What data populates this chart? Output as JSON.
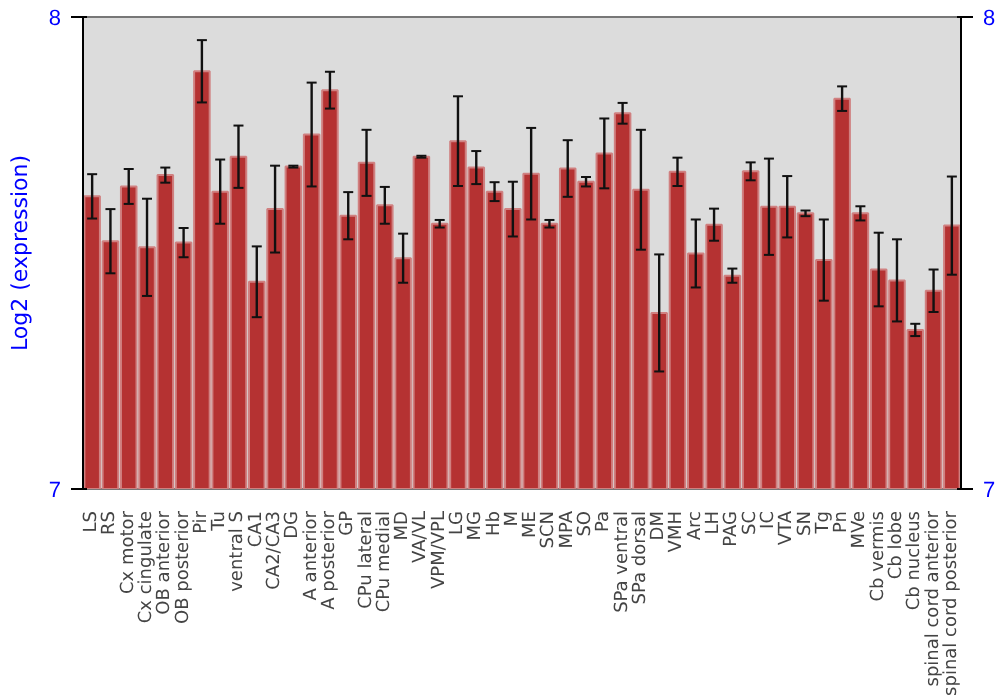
{
  "chart_data": {
    "type": "bar",
    "ylabel": "Log2 (expression)",
    "categories": [
      "LS",
      "RS",
      "Cx motor",
      "Cx cingulate",
      "OB anterior",
      "OB posterior",
      "Pir",
      "Tu",
      "ventral S",
      "CA1",
      "CA2/CA3",
      "DG",
      "A anterior",
      "A posterior",
      "GP",
      "CPu lateral",
      "CPu medial",
      "MD",
      "VA/VL",
      "VPM/VPL",
      "LG",
      "MG",
      "Hb",
      "M",
      "ME",
      "SCN",
      "MPA",
      "SO",
      "Pa",
      "SPa ventral",
      "SPa dorsal",
      "DM",
      "VMH",
      "Arc",
      "LH",
      "PAG",
      "SC",
      "IC",
      "VTA",
      "SN",
      "Tg",
      "Pn",
      "MVe",
      "Cb vermis",
      "Cb lobe",
      "Cb nucleus",
      "spinal cord anterior",
      "spinal cord posterior"
    ],
    "values": [
      7.62,
      7.525,
      7.641,
      7.512,
      7.665,
      7.522,
      7.885,
      7.63,
      7.704,
      7.439,
      7.593,
      7.683,
      7.751,
      7.845,
      7.579,
      7.691,
      7.601,
      7.489,
      7.704,
      7.562,
      7.737,
      7.681,
      7.63,
      7.593,
      7.668,
      7.562,
      7.679,
      7.651,
      7.711,
      7.796,
      7.634,
      7.373,
      7.672,
      7.499,
      7.56,
      7.452,
      7.673,
      7.598,
      7.598,
      7.584,
      7.485,
      7.827,
      7.584,
      7.465,
      7.442,
      7.337,
      7.42,
      7.558
    ],
    "errors": [
      0.047,
      0.068,
      0.037,
      0.103,
      0.016,
      0.031,
      0.066,
      0.068,
      0.066,
      0.075,
      0.092,
      0.002,
      0.11,
      0.039,
      0.05,
      0.07,
      0.039,
      0.052,
      0.002,
      0.008,
      0.095,
      0.035,
      0.02,
      0.058,
      0.097,
      0.008,
      0.06,
      0.01,
      0.074,
      0.022,
      0.127,
      0.124,
      0.03,
      0.072,
      0.034,
      0.015,
      0.019,
      0.102,
      0.065,
      0.006,
      0.086,
      0.026,
      0.015,
      0.078,
      0.087,
      0.013,
      0.045,
      0.104
    ],
    "color": "#b53232",
    "ylim": [
      7,
      8
    ],
    "yticks": [
      7,
      8
    ],
    "y2lim": [
      7,
      8
    ],
    "y2ticks": [
      7,
      8
    ],
    "grid": false
  }
}
